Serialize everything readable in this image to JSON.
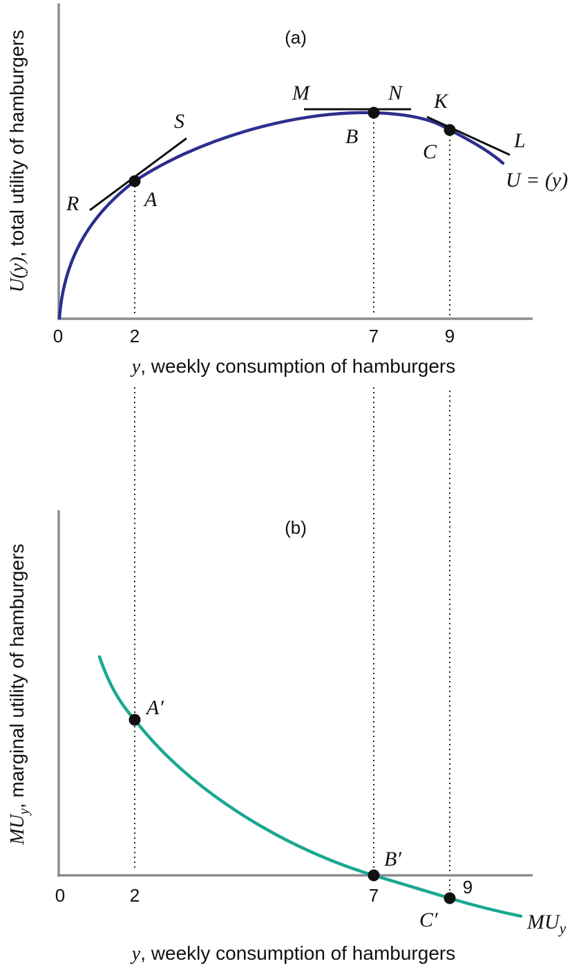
{
  "colors": {
    "utility_curve": "#2b2f8f",
    "marginal_curve": "#19a890",
    "axis": "#8c8c8c",
    "ink": "#111111"
  },
  "chart_data": [
    {
      "type": "line",
      "panel_label": "(a)",
      "ylabel_var": "U(y)",
      "ylabel_rest": ", total utility of hamburgers",
      "xlabel_var": "y",
      "xlabel_rest": ", weekly consumption of hamburgers",
      "x_ticks": [
        "0",
        "2",
        "7",
        "9"
      ],
      "xlim": [
        0,
        10.4
      ],
      "series": [
        {
          "name": "U = (y)",
          "x": [
            0,
            0.5,
            1,
            1.5,
            2,
            3,
            4,
            5,
            6,
            7,
            8,
            9,
            9.8
          ],
          "y": [
            0,
            0.46,
            0.62,
            0.71,
            0.775,
            0.86,
            0.92,
            0.96,
            0.99,
            1.0,
            0.99,
            0.955,
            0.88
          ]
        }
      ],
      "points": [
        {
          "label": "A",
          "x": 2
        },
        {
          "label": "B",
          "x": 7
        },
        {
          "label": "C",
          "x": 9
        }
      ],
      "tangents": [
        {
          "left": "R",
          "right": "S",
          "at": "A"
        },
        {
          "left": "M",
          "right": "N",
          "at": "B"
        },
        {
          "left": "K",
          "right": "L",
          "at": "C"
        }
      ]
    },
    {
      "type": "line",
      "panel_label": "(b)",
      "ylabel_var": "MU",
      "ylabel_sub": "y",
      "ylabel_rest": ", marginal utility of hamburgers",
      "xlabel_var": "y",
      "xlabel_rest": ", weekly consumption of hamburgers",
      "x_ticks": [
        "0",
        "2",
        "7",
        "9"
      ],
      "xlim": [
        0,
        10.4
      ],
      "ylim": [
        -0.35,
        2.15
      ],
      "series": [
        {
          "name": "MU",
          "name_sub": "y",
          "x": [
            0.9,
            1.5,
            2,
            3,
            4,
            5,
            6,
            7,
            8,
            9,
            10
          ],
          "y": [
            1.5,
            1.1,
            0.9,
            0.62,
            0.4,
            0.24,
            0.1,
            0.0,
            -0.08,
            -0.14,
            -0.2
          ]
        }
      ],
      "points": [
        {
          "label": "A′",
          "x": 2
        },
        {
          "label": "B′",
          "x": 7
        },
        {
          "label": "C′",
          "x": 9
        }
      ]
    }
  ]
}
